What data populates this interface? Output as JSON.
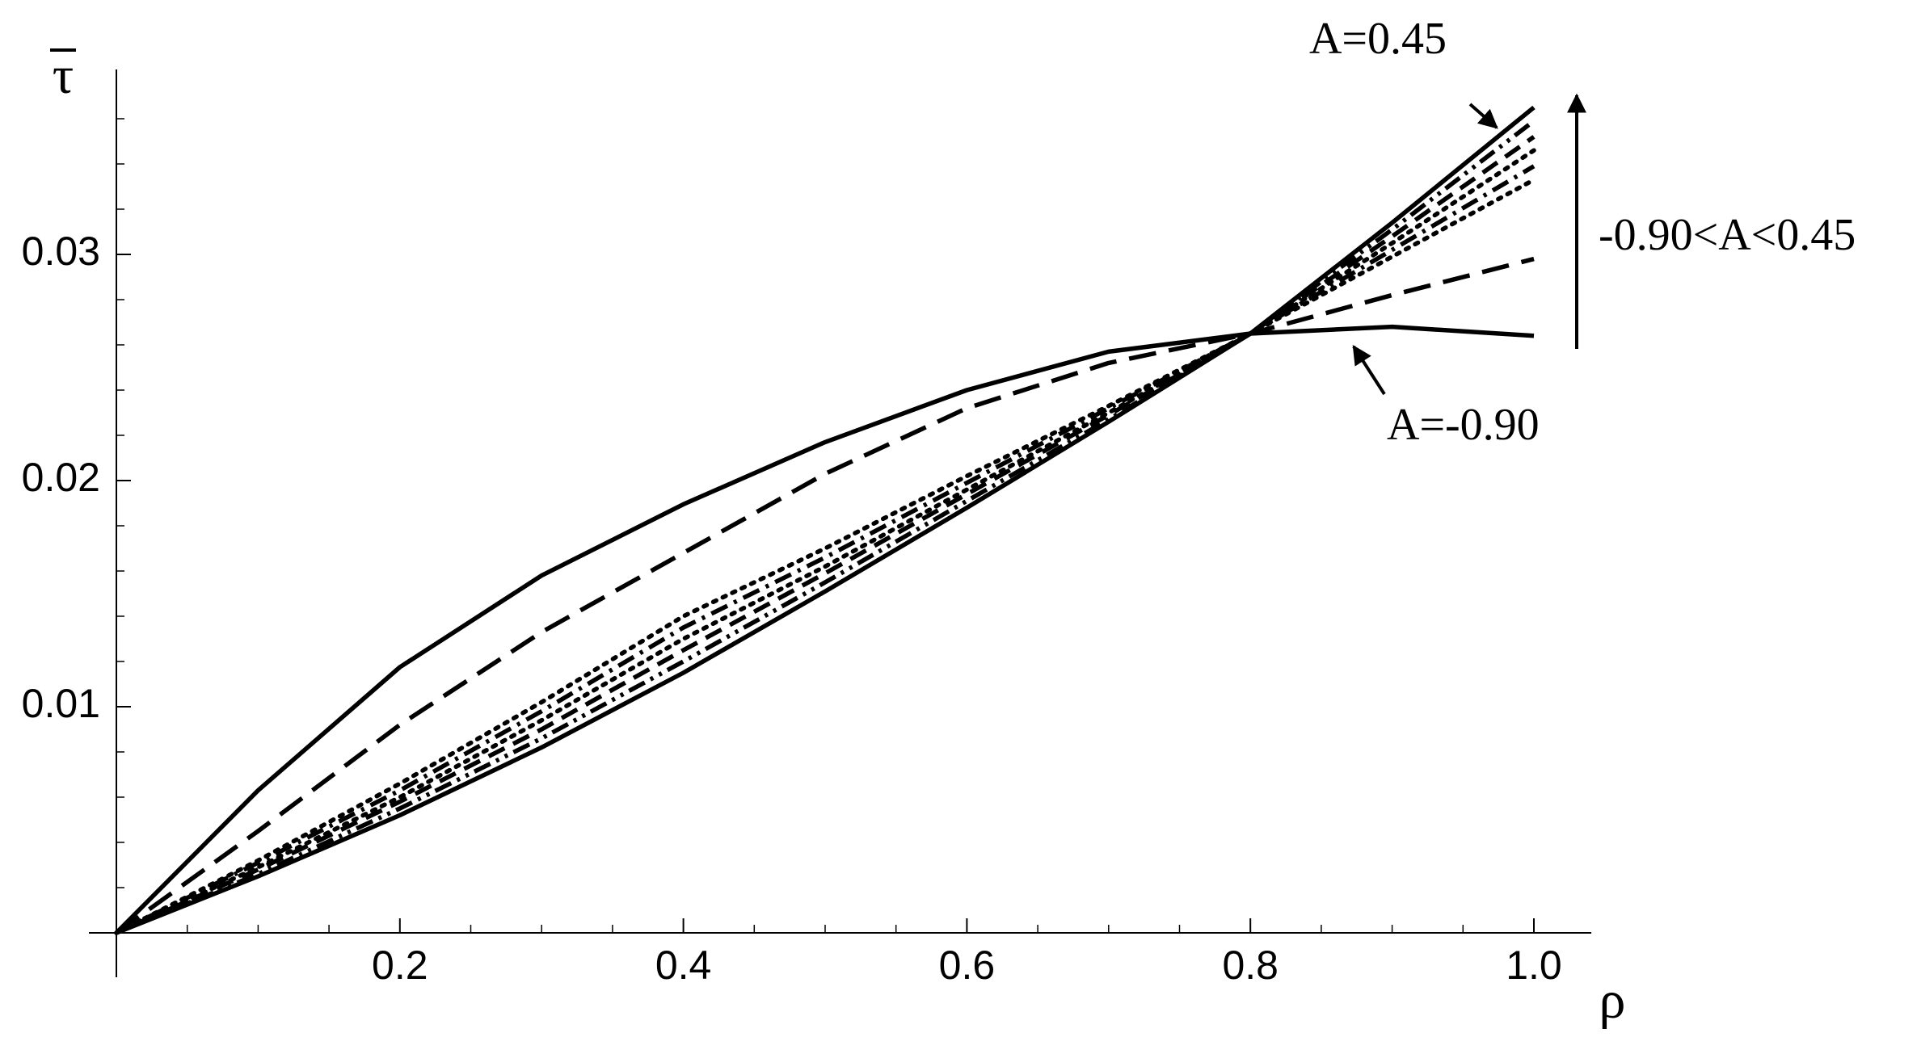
{
  "chart_data": {
    "type": "line",
    "x_label": "ρ",
    "y_label": "τ",
    "x": [
      0,
      0.1,
      0.2,
      0.3,
      0.4,
      0.5,
      0.6,
      0.7,
      0.8,
      0.9,
      1
    ],
    "series": [
      {
        "color": "#000000",
        "dash": "solid",
        "values": [
          0,
          0.0063,
          0.01175,
          0.0158,
          0.01895,
          0.0217,
          0.024,
          0.0257,
          0.0265,
          0.0268,
          0.0264
        ]
      },
      {
        "color": "#000000",
        "dash": "long-dash",
        "values": [
          0,
          0.0045,
          0.0092,
          0.0133,
          0.0168,
          0.0203,
          0.0232,
          0.0252,
          0.0265,
          0.0282,
          0.0298
        ]
      },
      {
        "color": "#000000",
        "dash": "dotted",
        "values": [
          0,
          0.0032,
          0.0066,
          0.0102,
          0.014,
          0.017,
          0.0202,
          0.0233,
          0.0265,
          0.0299,
          0.0333
        ]
      },
      {
        "color": "#000000",
        "dash": "dash-dot",
        "values": [
          0,
          0.0031,
          0.0063,
          0.0098,
          0.0135,
          0.0166,
          0.0199,
          0.0232,
          0.0265,
          0.0302,
          0.0339
        ]
      },
      {
        "color": "#000000",
        "dash": "dotted",
        "values": [
          0,
          0.0029,
          0.006,
          0.0094,
          0.013,
          0.0162,
          0.0196,
          0.023,
          0.0265,
          0.0305,
          0.0346
        ]
      },
      {
        "color": "#000000",
        "dash": "dashed",
        "values": [
          0,
          0.0028,
          0.0058,
          0.009,
          0.0125,
          0.0159,
          0.0194,
          0.0229,
          0.0265,
          0.0308,
          0.0352
        ]
      },
      {
        "color": "#000000",
        "dash": "dash-dot-dot",
        "values": [
          0,
          0.0026,
          0.0055,
          0.0086,
          0.012,
          0.0155,
          0.0191,
          0.0227,
          0.0265,
          0.0311,
          0.0359
        ]
      },
      {
        "color": "#000000",
        "dash": "solid",
        "values": [
          0,
          0.0025,
          0.0052,
          0.0082,
          0.0115,
          0.0151,
          0.0188,
          0.0226,
          0.0265,
          0.0314,
          0.0365
        ]
      }
    ],
    "annotations": [
      "A=0.45",
      "-0.90<A<0.45",
      "A=-0.90"
    ],
    "xlim": [
      0,
      1.02
    ],
    "ylim": [
      0,
      0.038
    ],
    "xticks": [
      0.2,
      0.4,
      0.6,
      0.8,
      {
        "value": 1,
        "label": "1.0"
      }
    ],
    "yticks": [
      0.01,
      0.02,
      0.03
    ],
    "xminorticks": [
      0.05,
      0.1,
      0.15,
      0.25,
      0.3,
      0.35,
      0.45,
      0.5,
      0.55,
      0.65,
      0.7,
      0.75,
      0.85,
      0.9,
      0.95
    ],
    "yminorticks": [
      0.002,
      0.004,
      0.006,
      0.008,
      0.012,
      0.014,
      0.016,
      0.018,
      0.022,
      0.024,
      0.026,
      0.028,
      0.032,
      0.034,
      0.036
    ],
    "grid": false
  }
}
